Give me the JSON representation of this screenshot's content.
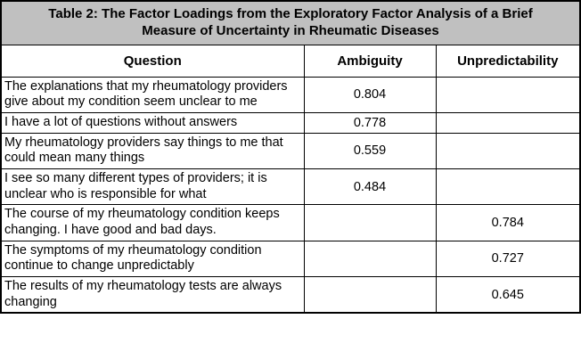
{
  "table": {
    "title": "Table 2: The Factor Loadings from the Exploratory Factor Analysis of a Brief Measure of Uncertainty in Rheumatic Diseases",
    "columns": [
      "Question",
      "Ambiguity",
      "Unpredictability"
    ],
    "rows": [
      {
        "question": "The explanations that my rheumatology providers give about my condition seem unclear to me",
        "ambiguity": "0.804",
        "unpredictability": ""
      },
      {
        "question": "I have a lot of questions without answers",
        "ambiguity": "0.778",
        "unpredictability": ""
      },
      {
        "question": "My rheumatology providers say things to me that could mean many things",
        "ambiguity": "0.559",
        "unpredictability": ""
      },
      {
        "question": "I see so many different types of providers; it is unclear who is responsible for what",
        "ambiguity": "0.484",
        "unpredictability": ""
      },
      {
        "question": "The course of my rheumatology condition keeps changing. I have good and bad days.",
        "ambiguity": "",
        "unpredictability": "0.784"
      },
      {
        "question": "The symptoms of my rheumatology condition continue to change unpredictably",
        "ambiguity": "",
        "unpredictability": "0.727"
      },
      {
        "question": "The results of my rheumatology tests are always changing",
        "ambiguity": "",
        "unpredictability": "0.645"
      }
    ],
    "colors": {
      "title_background": "#c0c0c0",
      "border": "#000000"
    }
  },
  "chart_data": {
    "type": "table",
    "title": "Table 2: The Factor Loadings from the Exploratory Factor Analysis of a Brief Measure of Uncertainty in Rheumatic Diseases",
    "columns": [
      "Question",
      "Ambiguity",
      "Unpredictability"
    ],
    "rows": [
      [
        "The explanations that my rheumatology providers give about my condition seem unclear to me",
        0.804,
        null
      ],
      [
        "I have a lot of questions without answers",
        0.778,
        null
      ],
      [
        "My rheumatology providers say things to me that could mean many things",
        0.559,
        null
      ],
      [
        "I see so many different types of providers; it is unclear who is responsible for what",
        0.484,
        null
      ],
      [
        "The course of my rheumatology condition keeps changing. I have good and bad days.",
        null,
        0.784
      ],
      [
        "The symptoms of my rheumatology condition continue to change unpredictably",
        null,
        0.727
      ],
      [
        "The results of my rheumatology tests are always changing",
        null,
        0.645
      ]
    ]
  }
}
